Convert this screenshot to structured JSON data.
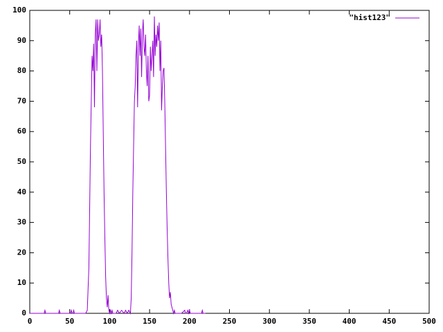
{
  "chart_data": {
    "type": "line",
    "x": [
      0,
      18,
      19,
      20,
      36,
      37,
      38,
      51,
      52,
      53,
      54,
      55,
      56,
      70,
      72,
      74,
      75,
      76,
      77,
      78,
      79,
      80,
      81,
      82,
      83,
      84,
      85,
      86,
      87,
      88,
      89,
      90,
      91,
      92,
      93,
      94,
      95,
      96,
      97,
      98,
      99,
      100,
      101,
      102,
      103,
      104,
      105,
      108,
      110,
      112,
      115,
      118,
      120,
      122,
      124,
      126,
      127,
      128,
      129,
      130,
      131,
      132,
      133,
      134,
      135,
      136,
      137,
      138,
      139,
      140,
      141,
      142,
      143,
      144,
      145,
      146,
      147,
      148,
      149,
      150,
      151,
      152,
      153,
      154,
      155,
      156,
      157,
      158,
      159,
      160,
      161,
      162,
      163,
      164,
      165,
      166,
      167,
      168,
      169,
      170,
      171,
      172,
      173,
      174,
      175,
      176,
      177,
      178,
      179,
      180,
      181,
      182,
      190,
      194,
      195,
      196,
      198,
      199,
      200,
      201,
      215,
      216,
      217,
      220
    ],
    "series": [
      {
        "name": "\"hist123\"",
        "color": "#9400d3",
        "values": [
          0,
          0,
          1,
          0,
          0,
          1,
          0,
          0,
          1,
          0,
          0,
          1,
          0,
          0,
          1,
          15,
          35,
          55,
          70,
          85,
          80,
          89,
          68,
          92,
          97,
          80,
          97,
          90,
          92,
          97,
          88,
          92,
          80,
          60,
          40,
          25,
          12,
          5,
          2,
          6,
          1,
          0,
          1,
          0,
          1,
          0,
          0,
          0,
          1,
          0,
          1,
          0,
          1,
          0,
          1,
          0,
          5,
          20,
          40,
          55,
          70,
          75,
          85,
          90,
          68,
          88,
          95,
          85,
          94,
          78,
          92,
          97,
          88,
          85,
          92,
          80,
          75,
          85,
          70,
          72,
          88,
          80,
          85,
          90,
          78,
          98,
          85,
          92,
          88,
          95,
          90,
          96,
          80,
          90,
          67,
          75,
          80,
          81,
          70,
          55,
          40,
          28,
          18,
          10,
          5,
          7,
          3,
          2,
          1,
          0,
          1,
          0,
          0,
          1,
          0,
          0,
          1,
          0,
          1,
          0,
          0,
          1,
          0,
          0
        ]
      }
    ],
    "xlim": [
      0,
      500
    ],
    "ylim": [
      0,
      100
    ],
    "xticks": [
      0,
      50,
      100,
      150,
      200,
      250,
      300,
      350,
      400,
      450,
      500
    ],
    "yticks": [
      0,
      10,
      20,
      30,
      40,
      50,
      60,
      70,
      80,
      90,
      100
    ],
    "legend": "top-right"
  }
}
